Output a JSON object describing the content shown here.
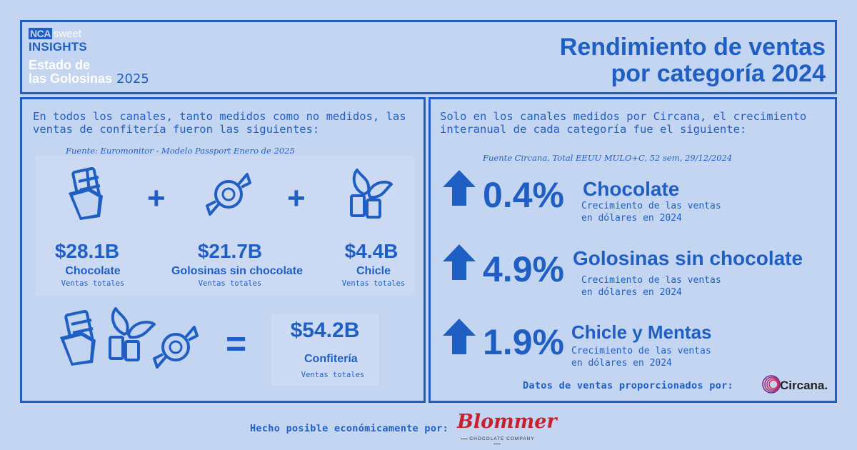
{
  "header": {
    "logo_nca": "NCA",
    "logo_sweet": "sweet",
    "logo_insights": "INSIGHTS",
    "subtitle_line1": "Estado de",
    "subtitle_line2": "las Golosinas",
    "subtitle_year": "2025",
    "title_line1": "Rendimiento de ventas",
    "title_line2": "por categoría 2024"
  },
  "left": {
    "intro": "En todos los canales, tanto medidos como no medidos, las ventas de confitería fueron las siguientes:",
    "source": "Fuente: Euromonitor - Modelo Passport Enero de 2025",
    "plus": "+",
    "categories": [
      {
        "value": "$28.1B",
        "name": "Chocolate",
        "sub": "Ventas totales",
        "icon": "chocolate-bar-icon"
      },
      {
        "value": "$21.7B",
        "name": "Golosinas sin chocolate",
        "sub": "Ventas totales",
        "icon": "wrapped-candy-icon"
      },
      {
        "value": "$4.4B",
        "name": "Chicle",
        "sub": "Ventas totales",
        "icon": "gum-mint-icon"
      }
    ],
    "equals": "=",
    "total": {
      "value": "$54.2B",
      "name": "Confitería",
      "sub": "Ventas totales"
    }
  },
  "right": {
    "intro": "Solo en los canales medidos por Circana, el crecimiento interanual de cada categoría fue el siguiente:",
    "source": "Fuente Circana, Total EEUU MULO+C, 52 sem, 29/12/2024",
    "growth": [
      {
        "pct": "0.4%",
        "name": "Chocolate",
        "sub1": "Crecimiento de las ventas",
        "sub2": "en dólares en 2024"
      },
      {
        "pct": "4.9%",
        "name": "Golosinas sin chocolate",
        "sub1": "Crecimiento de las ventas",
        "sub2": "en dólares en 2024"
      },
      {
        "pct": "1.9%",
        "name": "Chicle y Mentas",
        "sub1": "Crecimiento de las ventas",
        "sub2": "en dólares en 2024"
      }
    ],
    "credit": "Datos de ventas proporcionados por:",
    "circana": "Circana."
  },
  "footer": {
    "text": "Hecho posible económicamente por:",
    "blommer": "Blommer",
    "blommer_sub": "CHOCOLATE COMPANY"
  },
  "colors": {
    "accent": "#1f5fc4",
    "background": "#c4d5f1",
    "blommer_red": "#c8202c"
  }
}
